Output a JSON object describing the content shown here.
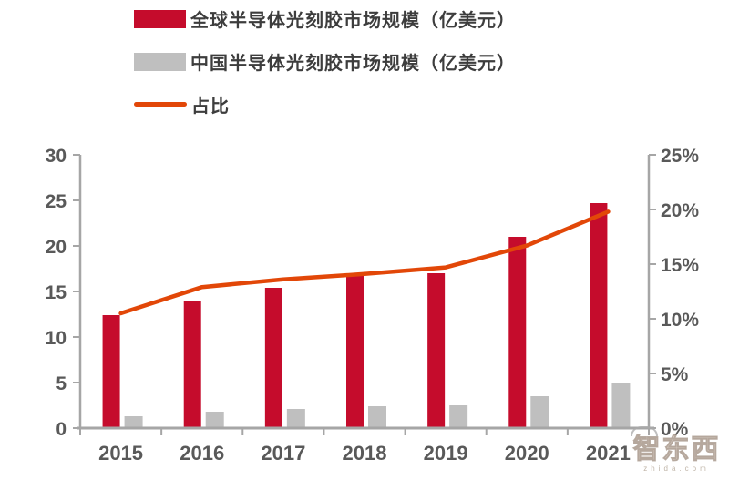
{
  "page": {
    "background": "#FFFFFF"
  },
  "legend": {
    "items": [
      {
        "label": "全球半导体光刻胶市场规模（亿美元）",
        "swatch": "bar",
        "color": "#C50C2C"
      },
      {
        "label": "中国半导体光刻胶市场规模（亿美元）",
        "swatch": "bar",
        "color": "#BFBFBF"
      },
      {
        "label": "占比",
        "swatch": "line",
        "color": "#E24708"
      }
    ]
  },
  "watermark": {
    "text": "智东西",
    "subtext": "zhida.com"
  },
  "colors": {
    "axis_line": "#A6A6A6",
    "tick_label": "#595959",
    "legend_text": "#3D3D3D",
    "global_bar": "#C50C2C",
    "china_bar": "#BFBFBF",
    "ratio_line": "#E24708"
  },
  "chart_data": {
    "type": "bar",
    "subtype": "dual-axis bar + line combo",
    "title": "",
    "categories": [
      "2015",
      "2016",
      "2017",
      "2018",
      "2019",
      "2020",
      "2021"
    ],
    "series": [
      {
        "name": "全球半导体光刻胶市场规模（亿美元）",
        "type": "bar",
        "axis": "left",
        "color": "#C50C2C",
        "values": [
          12.4,
          13.9,
          15.4,
          17.0,
          17.0,
          21.0,
          24.7
        ]
      },
      {
        "name": "中国半导体光刻胶市场规模（亿美元）",
        "type": "bar",
        "axis": "left",
        "color": "#BFBFBF",
        "values": [
          1.3,
          1.8,
          2.1,
          2.4,
          2.5,
          3.5,
          4.9
        ]
      },
      {
        "name": "占比",
        "type": "line",
        "axis": "right",
        "color": "#E24708",
        "values_pct": [
          10.5,
          12.9,
          13.6,
          14.1,
          14.7,
          16.7,
          19.8
        ]
      }
    ],
    "left_axis": {
      "min": 0,
      "max": 30,
      "step": 5,
      "tick_labels": [
        "0",
        "5",
        "10",
        "15",
        "20",
        "25",
        "30"
      ]
    },
    "right_axis": {
      "min": 0,
      "max": 25,
      "step": 5,
      "tick_labels": [
        "0%",
        "5%",
        "10%",
        "15%",
        "20%",
        "25%"
      ]
    },
    "grid": false,
    "legend_position": "top-left"
  }
}
